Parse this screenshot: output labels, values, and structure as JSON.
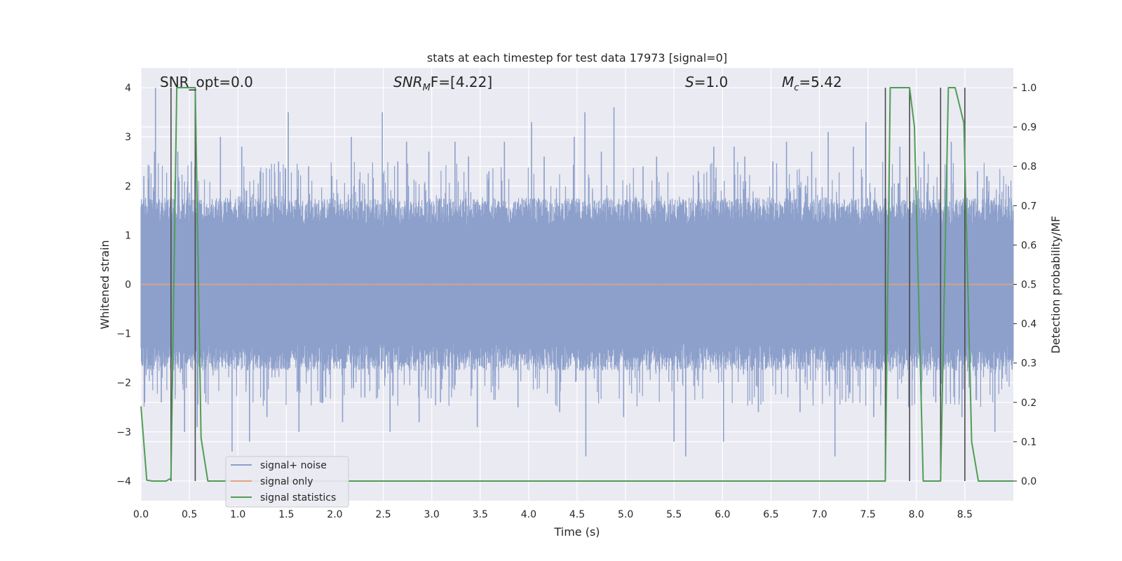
{
  "chart_data": {
    "type": "line",
    "title": "stats at each timestep for test data 17973 [signal=0]",
    "xlabel": "Time (s)",
    "ylabel": "Whitened strain",
    "y2label": "Detection probability/MF",
    "xlim": [
      0.0,
      9.0
    ],
    "ylim": [
      -4.4,
      4.4
    ],
    "y2lim": [
      -0.05,
      1.05
    ],
    "xticks": [
      0.0,
      0.5,
      1.0,
      1.5,
      2.0,
      2.5,
      3.0,
      3.5,
      4.0,
      4.5,
      5.0,
      5.5,
      6.0,
      6.5,
      7.0,
      7.5,
      8.0,
      8.5
    ],
    "xtick_labels": [
      "0.0",
      "0.5",
      "1.0",
      "1.5",
      "2.0",
      "2.5",
      "3.0",
      "3.5",
      "4.0",
      "4.5",
      "5.0",
      "5.5",
      "6.0",
      "6.5",
      "7.0",
      "7.5",
      "8.0",
      "8.5"
    ],
    "yticks": [
      -4,
      -3,
      -2,
      -1,
      0,
      1,
      2,
      3,
      4
    ],
    "ytick_labels": [
      "−4",
      "−3",
      "−2",
      "−1",
      "0",
      "1",
      "2",
      "3",
      "4"
    ],
    "y2ticks": [
      0.0,
      0.1,
      0.2,
      0.3,
      0.4,
      0.5,
      0.6,
      0.7,
      0.8,
      0.9,
      1.0
    ],
    "y2tick_labels": [
      "0.0",
      "0.1",
      "0.2",
      "0.3",
      "0.4",
      "0.5",
      "0.6",
      "0.7",
      "0.8",
      "0.9",
      "1.0"
    ],
    "grid": true,
    "legend_position": "bottom-left",
    "annotations": {
      "snr_opt": "SNR_opt=0.0",
      "snr_mf_prefix": "SNR",
      "snr_mf_sub": "M",
      "snr_mf_suffix": "F=[4.22]",
      "s_symbol": "S",
      "s_value": "=1.0",
      "mc_symbol": "M",
      "mc_sub": "c",
      "mc_value": "=5.42"
    },
    "series": [
      {
        "name": "signal+ noise",
        "color": "#8da0cb",
        "description_only": false,
        "amplitude_band": [
          -1.6,
          1.6
        ],
        "spike_peaks": [
          [
            0.03,
            2.2
          ],
          [
            0.14,
            2.7
          ],
          [
            0.15,
            4.0
          ],
          [
            0.21,
            -2.4
          ],
          [
            0.35,
            2.1
          ],
          [
            0.38,
            2.7
          ],
          [
            0.45,
            -3.0
          ],
          [
            0.52,
            2.5
          ],
          [
            0.58,
            -2.9
          ],
          [
            0.67,
            -2.4
          ],
          [
            0.82,
            3.0
          ],
          [
            0.94,
            -3.4
          ],
          [
            1.04,
            2.8
          ],
          [
            1.12,
            -3.2
          ],
          [
            1.23,
            2.3
          ],
          [
            1.3,
            -2.7
          ],
          [
            1.42,
            2.5
          ],
          [
            1.52,
            3.5
          ],
          [
            1.63,
            -3.0
          ],
          [
            1.73,
            2.4
          ],
          [
            1.85,
            -2.4
          ],
          [
            1.97,
            2.2
          ],
          [
            2.08,
            -2.8
          ],
          [
            2.17,
            3.0
          ],
          [
            2.31,
            -2.3
          ],
          [
            2.49,
            3.5
          ],
          [
            2.57,
            -3.0
          ],
          [
            2.65,
            2.5
          ],
          [
            2.74,
            2.9
          ],
          [
            2.87,
            -2.8
          ],
          [
            2.97,
            2.7
          ],
          [
            3.09,
            -2.4
          ],
          [
            3.24,
            2.9
          ],
          [
            3.38,
            2.6
          ],
          [
            3.47,
            -2.9
          ],
          [
            3.59,
            2.3
          ],
          [
            3.75,
            2.9
          ],
          [
            3.89,
            -2.5
          ],
          [
            4.03,
            3.3
          ],
          [
            4.16,
            2.6
          ],
          [
            4.32,
            -2.6
          ],
          [
            4.47,
            3.0
          ],
          [
            4.58,
            3.5
          ],
          [
            4.59,
            -3.5
          ],
          [
            4.75,
            2.7
          ],
          [
            4.88,
            3.6
          ],
          [
            4.98,
            -2.7
          ],
          [
            5.18,
            2.4
          ],
          [
            5.32,
            2.6
          ],
          [
            5.5,
            -3.2
          ],
          [
            5.62,
            -3.5
          ],
          [
            5.75,
            2.3
          ],
          [
            5.91,
            2.8
          ],
          [
            6.01,
            -3.2
          ],
          [
            6.12,
            2.8
          ],
          [
            6.23,
            2.6
          ],
          [
            6.37,
            -2.6
          ],
          [
            6.52,
            2.5
          ],
          [
            6.66,
            2.9
          ],
          [
            6.8,
            -2.6
          ],
          [
            6.92,
            2.7
          ],
          [
            7.09,
            3.1
          ],
          [
            7.16,
            -3.5
          ],
          [
            7.35,
            2.8
          ],
          [
            7.48,
            3.3
          ],
          [
            7.56,
            -2.7
          ],
          [
            7.72,
            2.3
          ],
          [
            7.83,
            2.8
          ],
          [
            7.92,
            -2.5
          ],
          [
            8.08,
            2.7
          ],
          [
            8.2,
            -2.4
          ],
          [
            8.36,
            2.9
          ],
          [
            8.47,
            -2.7
          ],
          [
            8.63,
            2.3
          ],
          [
            8.81,
            -3.0
          ],
          [
            8.95,
            2.0
          ]
        ]
      },
      {
        "name": "signal only",
        "color": "#e5a479",
        "x": [
          0.0,
          9.0
        ],
        "y": [
          0.0,
          0.0
        ]
      },
      {
        "name": "signal statistics",
        "color": "#4f9e55",
        "axis": "y2",
        "x": [
          0.0,
          0.06,
          0.12,
          0.2,
          0.26,
          0.31,
          0.37,
          0.42,
          0.56,
          0.62,
          0.69,
          7.62,
          7.68,
          7.73,
          7.84,
          7.93,
          7.98,
          8.07,
          8.17,
          8.25,
          8.33,
          8.4,
          8.49,
          8.57,
          8.64,
          8.76,
          9.0
        ],
        "y": [
          0.19,
          0.002,
          0.0,
          0.0,
          0.0,
          0.007,
          1.0,
          1.0,
          1.0,
          0.11,
          0.0,
          0.0,
          0.0,
          1.0,
          1.0,
          1.0,
          0.9,
          0.0,
          0.0,
          0.0,
          1.0,
          1.0,
          0.91,
          0.1,
          0.0,
          0.0,
          0.0
        ]
      }
    ],
    "vertical_lines_x": [
      0.31,
      0.56,
      7.68,
      7.93,
      8.25,
      8.5
    ]
  },
  "colors": {
    "plot_background": "#eaeaf2",
    "grid": "#ffffff",
    "noise": "#8da0cb",
    "signal_only": "#e5a479",
    "signal_statistics": "#4f9e55",
    "vline": "#4a4a4a"
  }
}
